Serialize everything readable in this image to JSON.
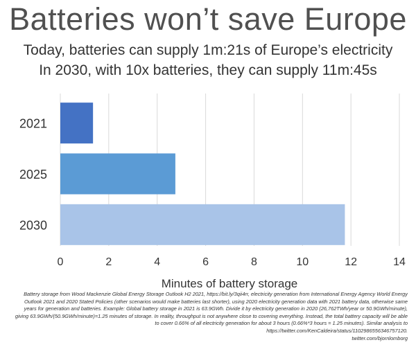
{
  "title": "Batteries won’t save Europe",
  "subtitle_line1": "Today, batteries can supply 1m:21s of Europe’s electricity",
  "subtitle_line2": "In 2030, with 10x batteries, they can supply 11m:45s",
  "chart_data": {
    "type": "bar",
    "orientation": "horizontal",
    "categories": [
      "2021",
      "2025",
      "2030"
    ],
    "values": [
      1.35,
      4.75,
      11.75
    ],
    "colors": [
      "#4472c4",
      "#5b9bd5",
      "#a9c4e8"
    ],
    "xlabel": "Minutes of battery storage",
    "ylabel": "",
    "xlim": [
      0,
      14
    ],
    "xticks": [
      "0",
      "2",
      "4",
      "6",
      "8",
      "10",
      "12",
      "14"
    ],
    "grid": "vertical",
    "title": "Batteries won’t save Europe"
  },
  "footnote": {
    "text": "Battery storage from Wood Mackenzie Global Energy Storage Outlook H2 2021, https://bit.ly/3qii4rr, electricity generation from International Energy Agency World Energy Outlook 2021 and 2020 Stated Policies (other scenarios would make batteries last shorter), using 2020 electricity generation data with 2021 battery data, otherwise same years for generation and batteries. Example: Global battery storage in 2021 is 63.9GWh. Divide it by electricity generation in 2020 (26,762TWh/year or 50.9GWh/minute), giving 63.9GWh/(50.9GWh/minute)=1.25 minutes of storage. In reality, throughput is not anywhere close to covering everything. Instead, the total battery capacity will be able to cover 0.66% of all electricity generation for about 3 hours (0.66%*3 hours = 1.25 minutes). Similar analysis to https://twitter.com/KenCaldeira/status/1102986556346757120.",
    "handle": "twitter.com/bjornlomborg"
  }
}
